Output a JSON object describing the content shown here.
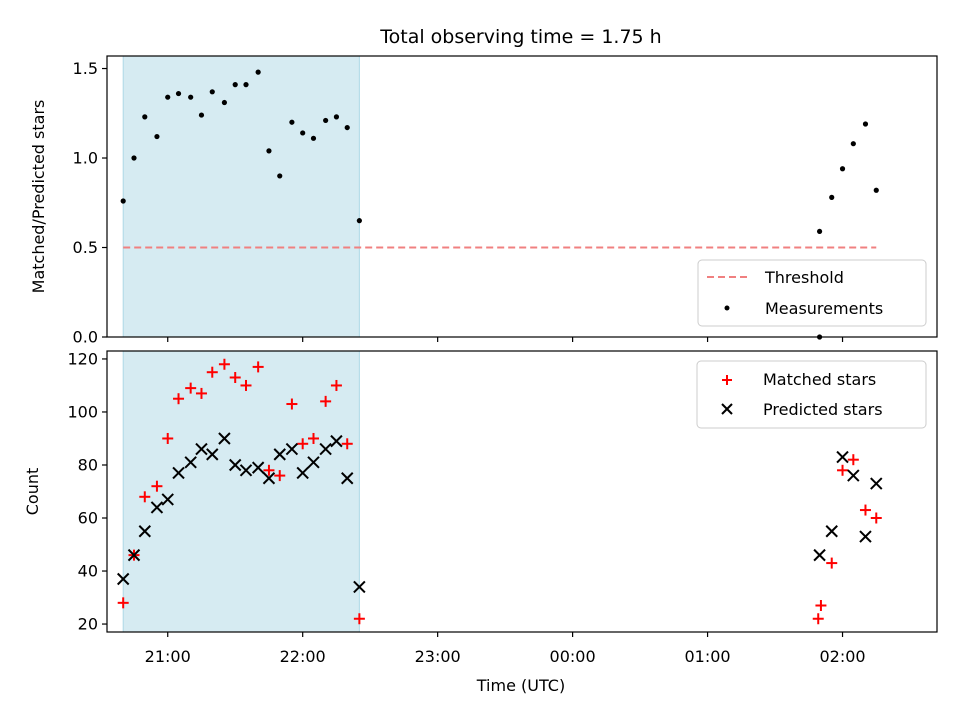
{
  "title": "Total observing time = 1.75 h",
  "xlabel": "Time (UTC)",
  "x_tick_labels": [
    "21:00",
    "22:00",
    "23:00",
    "00:00",
    "01:00",
    "02:00"
  ],
  "colors": {
    "observing_window": "#add8e6",
    "threshold": "#f08080",
    "measurements": "#000000",
    "matched": "#ff0000",
    "predicted": "#000000"
  },
  "chart_data": [
    {
      "type": "scatter",
      "ylabel": "Matched/Predicted stars",
      "xlim": [
        20.55,
        26.7
      ],
      "ylim": [
        0,
        1.57
      ],
      "y_ticks": [
        0.0,
        0.5,
        1.0,
        1.5
      ],
      "y_tick_labels": [
        "0.0",
        "0.5",
        "1.0",
        "1.5"
      ],
      "observing_window": [
        20.67,
        22.42
      ],
      "threshold": {
        "name": "Threshold",
        "value": 0.5,
        "x": [
          20.67,
          26.25
        ]
      },
      "legend": {
        "position": "lower-right",
        "entries": [
          "Threshold",
          "Measurements"
        ]
      },
      "series": [
        {
          "name": "Measurements",
          "x": [
            20.67,
            20.75,
            20.83,
            20.92,
            21.0,
            21.08,
            21.17,
            21.25,
            21.33,
            21.42,
            21.5,
            21.58,
            21.67,
            21.75,
            21.83,
            21.92,
            22.0,
            22.08,
            22.17,
            22.25,
            22.33,
            22.42,
            25.83,
            25.83,
            25.92,
            26.0,
            26.08,
            26.17,
            26.25
          ],
          "y": [
            0.76,
            1.0,
            1.23,
            1.12,
            1.34,
            1.36,
            1.34,
            1.24,
            1.37,
            1.31,
            1.41,
            1.41,
            1.48,
            1.04,
            0.9,
            1.2,
            1.14,
            1.11,
            1.21,
            1.23,
            1.17,
            0.65,
            0.0,
            0.59,
            0.78,
            0.94,
            1.08,
            1.19,
            0.82
          ]
        }
      ]
    },
    {
      "type": "scatter",
      "ylabel": "Count",
      "xlim": [
        20.55,
        26.7
      ],
      "ylim": [
        17,
        123
      ],
      "y_ticks": [
        20,
        40,
        60,
        80,
        100,
        120
      ],
      "y_tick_labels": [
        "20",
        "40",
        "60",
        "80",
        "100",
        "120"
      ],
      "observing_window": [
        20.67,
        22.42
      ],
      "legend": {
        "position": "upper-right",
        "entries": [
          "Matched stars",
          "Predicted stars"
        ]
      },
      "series": [
        {
          "name": "Matched stars",
          "marker": "plus",
          "x": [
            20.67,
            20.75,
            20.83,
            20.92,
            21.0,
            21.08,
            21.17,
            21.25,
            21.33,
            21.42,
            21.5,
            21.58,
            21.67,
            21.75,
            21.83,
            21.92,
            22.0,
            22.08,
            22.17,
            22.25,
            22.33,
            22.42,
            25.82,
            25.84,
            25.92,
            26.0,
            26.08,
            26.17,
            26.25
          ],
          "y": [
            28,
            46,
            68,
            72,
            90,
            105,
            109,
            107,
            115,
            118,
            113,
            110,
            117,
            78,
            76,
            103,
            88,
            90,
            104,
            110,
            88,
            22,
            22,
            27,
            43,
            78,
            82,
            63,
            60
          ]
        },
        {
          "name": "Predicted stars",
          "marker": "x",
          "x": [
            20.67,
            20.75,
            20.83,
            20.92,
            21.0,
            21.08,
            21.17,
            21.25,
            21.33,
            21.42,
            21.5,
            21.58,
            21.67,
            21.75,
            21.83,
            21.92,
            22.0,
            22.08,
            22.17,
            22.25,
            22.33,
            22.42,
            25.83,
            25.92,
            26.0,
            26.08,
            26.17,
            26.25
          ],
          "y": [
            37,
            46,
            55,
            64,
            67,
            77,
            81,
            86,
            84,
            90,
            80,
            78,
            79,
            75,
            84,
            86,
            77,
            81,
            86,
            89,
            75,
            34,
            46,
            55,
            83,
            76,
            53,
            73
          ]
        }
      ]
    }
  ]
}
